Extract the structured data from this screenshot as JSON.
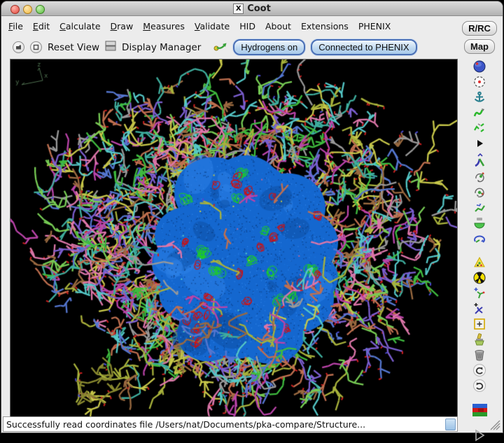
{
  "window": {
    "title": "Coot",
    "x11_badge": "X"
  },
  "menubar": {
    "items": [
      {
        "label": "File",
        "mnemonic": true
      },
      {
        "label": "Edit",
        "mnemonic": true
      },
      {
        "label": "Calculate",
        "mnemonic": true
      },
      {
        "label": "Draw",
        "mnemonic": true
      },
      {
        "label": "Measures",
        "mnemonic": true
      },
      {
        "label": "Validate",
        "mnemonic": true
      },
      {
        "label": "HID",
        "mnemonic": false
      },
      {
        "label": "About",
        "mnemonic": false
      },
      {
        "label": "Extensions",
        "mnemonic": false
      },
      {
        "label": "PHENIX",
        "mnemonic": false
      }
    ]
  },
  "toolbar": {
    "reset_view_label": "Reset View",
    "display_manager_label": "Display Manager",
    "hydrogens_button": "Hydrogens on",
    "phenix_button": "Connected to PHENIX",
    "icons": [
      "folder-circle-icon",
      "stop-circle-icon",
      "display-grid-icon",
      "green-arrow-icon"
    ]
  },
  "side_panel": {
    "rrc_button": "R/RC",
    "map_button": "Map",
    "icons": [
      "globe-icon",
      "target-icon",
      "anchor-icon",
      "real-space-refine-icon",
      "regularize-zone-icon",
      "play-triangle-icon",
      "rotate-translate-icon",
      "auto-fit-rotamer-icon",
      "rotamers-icon",
      "edit-chi-angles-icon",
      "side-chain-180-icon",
      "flip-peptide-icon",
      "add-alt-conf-icon",
      "mutate-radiation-icon",
      "add-terminal-residue-icon",
      "add-atom-icon",
      "place-atom-icon",
      "clear-brush-icon",
      "delete-trash-icon",
      "undo-icon",
      "redo-icon",
      "ligand-flag-icon",
      "run-disabled-icon"
    ]
  },
  "statusbar": {
    "message": "Successfully read coordinates file /Users/nat/Documents/pka-compare/Structure..."
  },
  "canvas_scene": {
    "background": "#000000",
    "axis_color": "#4f7050",
    "axis_labels": {
      "z": "z",
      "y": "y",
      "x": "x"
    },
    "stick_colors": [
      "#a8b23c",
      "#c8c84a",
      "#bb44aa",
      "#dd77aa",
      "#3fae9e",
      "#55c8c8",
      "#c07050",
      "#9a6a40",
      "#7c5fd0",
      "#5577d0",
      "#3fbb3f",
      "#77cc55",
      "#999999"
    ],
    "tip_colors": [
      "#cc2020",
      "#4a4ad0"
    ],
    "map_block": {
      "base": "#1467cf",
      "dark": "#0c4da1",
      "light": "#2e82e8",
      "deep": "#0a3f87"
    },
    "positive_density": "#1ed31e",
    "negative_density": "#d01010",
    "seed": 42
  }
}
